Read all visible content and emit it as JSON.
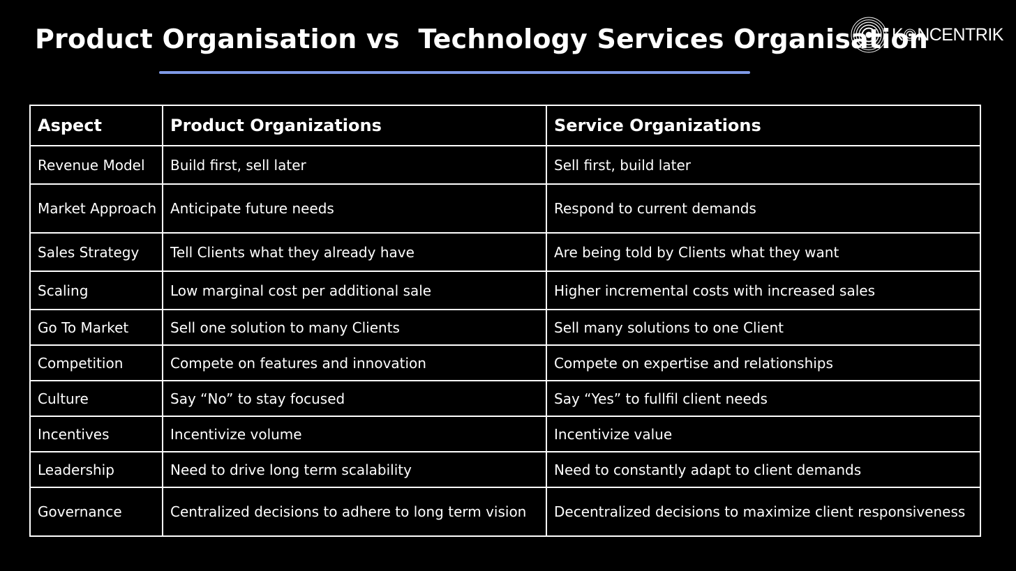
{
  "header": {
    "title": "Product Organisation vs  Technology Services Organisation",
    "accent_color": "#7f9ae6"
  },
  "logo": {
    "text_before": "K",
    "text_after": "NCENTRIK",
    "mark_icon": "concentric-circles-icon"
  },
  "table": {
    "headers": [
      "Aspect",
      "Product Organizations",
      "Service Organizations"
    ],
    "rows": [
      {
        "aspect": "Revenue Model",
        "product": "Build first,  sell later",
        "service": "Sell first,  build later"
      },
      {
        "aspect": "Market Approach",
        "product": "Anticipate future needs",
        "service": "Respond to current demands"
      },
      {
        "aspect": "Sales Strategy",
        "product": "Tell Clients what they already have",
        "service": "Are being told by Clients what they want"
      },
      {
        "aspect": "Scaling",
        "product": "Low marginal cost per additional sale",
        "service": "Higher incremental costs with increased sales"
      },
      {
        "aspect": "Go To Market",
        "product": "Sell one solution to many Clients",
        "service": "Sell many solutions to one Client"
      },
      {
        "aspect": "Competition",
        "product": "Compete on features and innovation",
        "service": "Compete on expertise and relationships"
      },
      {
        "aspect": "Culture",
        "product": "Say “No” to stay focused",
        "service": "Say “Yes” to fullfil client needs"
      },
      {
        "aspect": "Incentives",
        "product": "Incentivize volume",
        "service": "Incentivize value"
      },
      {
        "aspect": "Leadership",
        "product": "Need to drive long term scalability",
        "service": "Need to constantly adapt to client demands"
      },
      {
        "aspect": "Governance",
        "product": "Centralized decisions to adhere to long term vision",
        "service": "Decentralized decisions to maximize client responsiveness"
      }
    ]
  }
}
